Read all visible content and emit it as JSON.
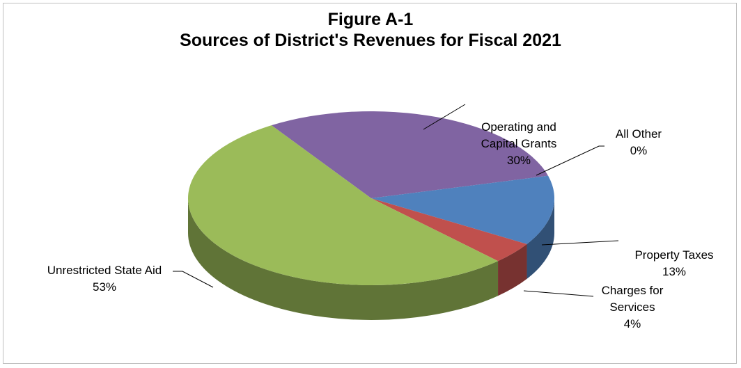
{
  "chart_data": {
    "type": "pie",
    "title": "Figure A-1",
    "subtitle": "Sources of District's Revenues for Fiscal 2021",
    "categories": [
      "Operating and Capital Grants",
      "All Other",
      "Property Taxes",
      "Charges for Services",
      "Unrestricted State Aid"
    ],
    "values": [
      30,
      0,
      13,
      4,
      53
    ],
    "value_labels": [
      "30%",
      "0%",
      "13%",
      "4%",
      "53%"
    ],
    "colors": [
      "#8064a2",
      "#4f81bd",
      "#4f81bd",
      "#c0504d",
      "#9bbb59"
    ],
    "three_d": true
  }
}
